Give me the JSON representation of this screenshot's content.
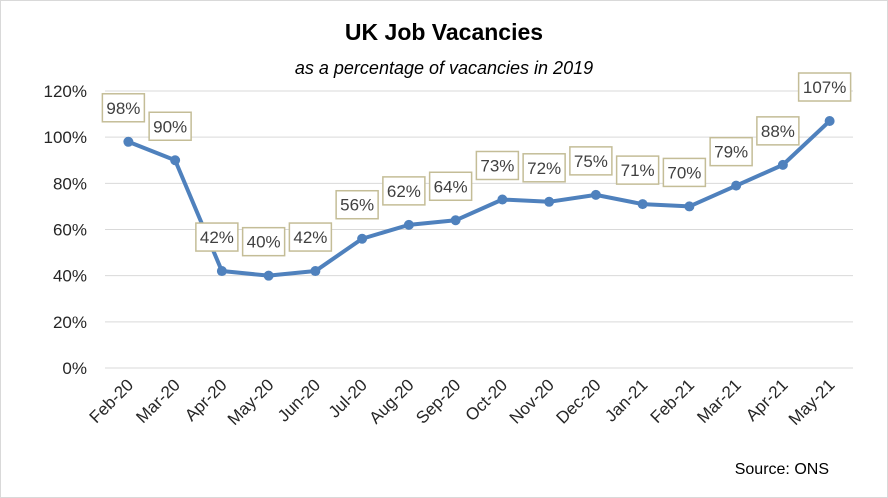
{
  "chart_data": {
    "type": "line",
    "title": "UK Job Vacancies",
    "subtitle": "as a percentage of vacancies in 2019",
    "source": "Source: ONS",
    "categories": [
      "Feb-20",
      "Mar-20",
      "Apr-20",
      "May-20",
      "Jun-20",
      "Jul-20",
      "Aug-20",
      "Sep-20",
      "Oct-20",
      "Nov-20",
      "Dec-20",
      "Jan-21",
      "Feb-21",
      "Mar-21",
      "Apr-21",
      "May-21"
    ],
    "series": [
      {
        "values": [
          98,
          90,
          42,
          40,
          42,
          56,
          62,
          64,
          73,
          72,
          75,
          71,
          70,
          79,
          88,
          107
        ],
        "labels": [
          "98%",
          "90%",
          "42%",
          "40%",
          "42%",
          "56%",
          "62%",
          "64%",
          "73%",
          "72%",
          "75%",
          "71%",
          "70%",
          "79%",
          "88%",
          "107%"
        ]
      }
    ],
    "yticks": [
      "0%",
      "20%",
      "40%",
      "60%",
      "80%",
      "100%",
      "120%"
    ],
    "ylim": [
      0,
      120
    ],
    "grid": true,
    "legend": "none",
    "colors": {
      "line": "#4f81bd",
      "grid": "#d9d9d9",
      "label_border": "#c4bd97",
      "label_text": "#404040"
    }
  }
}
